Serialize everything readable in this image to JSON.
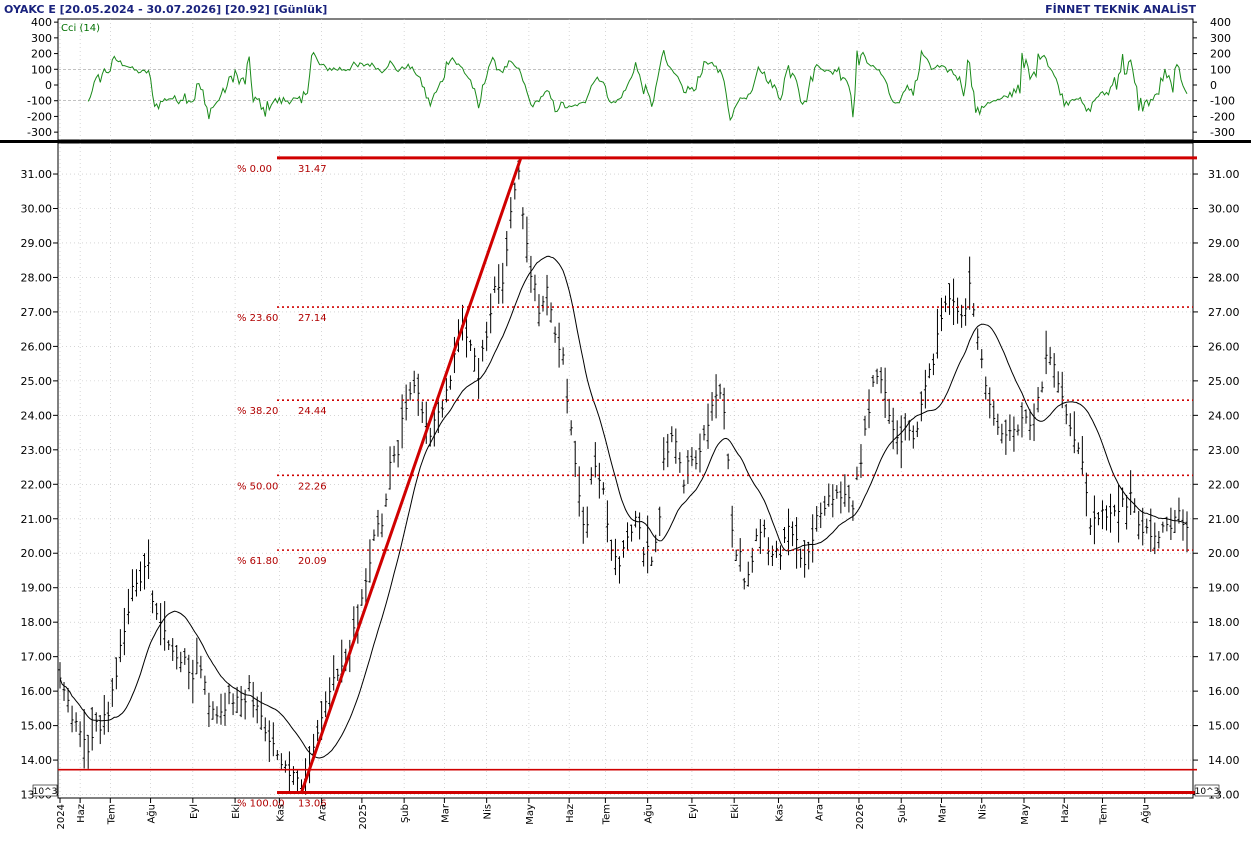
{
  "header": {
    "left": "OYAKC E  [20.05.2024 - 30.07.2026]  [20.92]  [Günlük]",
    "right": "FİNNET TEKNİK ANALİST"
  },
  "indicator": {
    "label": "Cci (14)",
    "ticks": [
      "400",
      "300",
      "200",
      "100",
      "0",
      "-100",
      "-200",
      "-300"
    ],
    "tick_values": [
      400,
      300,
      200,
      100,
      0,
      -100,
      -200,
      -300
    ],
    "color": "#1a8a1a"
  },
  "price_axis": {
    "ticks": [
      "31.00",
      "30.00",
      "29.00",
      "28.00",
      "27.00",
      "26.00",
      "25.00",
      "24.00",
      "23.00",
      "22.00",
      "21.00",
      "20.00",
      "19.00",
      "18.00",
      "17.00",
      "16.00",
      "15.00",
      "14.00",
      "13.00"
    ],
    "tick_values": [
      31,
      30,
      29,
      28,
      27,
      26,
      25,
      24,
      23,
      22,
      21,
      20,
      19,
      18,
      17,
      16,
      15,
      14,
      13
    ],
    "scale_badge": "10^3"
  },
  "fibonacci": {
    "color": "#d00000",
    "levels": [
      {
        "pct": "% 0.00",
        "value": "31.47",
        "price": 31.47
      },
      {
        "pct": "% 23.60",
        "value": "27.14",
        "price": 27.14
      },
      {
        "pct": "% 38.20",
        "value": "24.44",
        "price": 24.44
      },
      {
        "pct": "% 50.00",
        "value": "22.26",
        "price": 22.26
      },
      {
        "pct": "% 61.80",
        "value": "20.09",
        "price": 20.09
      },
      {
        "pct": "% 100.00",
        "value": "13.06",
        "price": 13.06
      }
    ],
    "support_price": 13.72,
    "trend_from": {
      "index": 120,
      "price": 13.06
    },
    "trend_to": {
      "index": 229,
      "price": 31.47
    }
  },
  "x_axis": {
    "labels": [
      {
        "text": "2024",
        "index": 0
      },
      {
        "text": "Haz",
        "index": 10
      },
      {
        "text": "Tem",
        "index": 25
      },
      {
        "text": "Ağu",
        "index": 45
      },
      {
        "text": "Eyl",
        "index": 66
      },
      {
        "text": "Eki",
        "index": 87
      },
      {
        "text": "Kas",
        "index": 109
      },
      {
        "text": "Ara",
        "index": 130
      },
      {
        "text": "2025",
        "index": 150
      },
      {
        "text": "Şub",
        "index": 171
      },
      {
        "text": "Mar",
        "index": 191
      },
      {
        "text": "Nis",
        "index": 212
      },
      {
        "text": "May",
        "index": 233
      },
      {
        "text": "Haz",
        "index": 253
      },
      {
        "text": "Tem",
        "index": 271
      },
      {
        "text": "Ağu",
        "index": 292
      },
      {
        "text": "Eyl",
        "index": 314
      },
      {
        "text": "Eki",
        "index": 335
      },
      {
        "text": "Kas",
        "index": 357
      },
      {
        "text": "Ara",
        "index": 377
      },
      {
        "text": "2026",
        "index": 397
      },
      {
        "text": "Şub",
        "index": 418
      },
      {
        "text": "Mar",
        "index": 438
      },
      {
        "text": "Nis",
        "index": 458
      },
      {
        "text": "May",
        "index": 479
      },
      {
        "text": "Haz",
        "index": 499
      },
      {
        "text": "Tem",
        "index": 518
      },
      {
        "text": "Ağu",
        "index": 539
      }
    ]
  },
  "chart_data": {
    "type": "line",
    "title": "OYAKC E  [20.05.2024 - 30.07.2026]  [20.92]  [Günlük]",
    "ylim": [
      12.9,
      31.9
    ],
    "indicator_ylim": [
      -350,
      420
    ],
    "bars_per_point": 2,
    "anchors": [
      [
        0,
        16.3
      ],
      [
        3,
        15.8
      ],
      [
        10,
        14.7
      ],
      [
        14,
        14.2
      ],
      [
        16,
        14.8
      ],
      [
        19,
        15.0
      ],
      [
        22,
        15.2
      ],
      [
        25,
        15.5
      ],
      [
        29,
        16.8
      ],
      [
        32,
        17.9
      ],
      [
        36,
        18.8
      ],
      [
        40,
        19.2
      ],
      [
        44,
        19.7
      ],
      [
        46,
        18.5
      ],
      [
        50,
        17.9
      ],
      [
        54,
        17.4
      ],
      [
        58,
        17.0
      ],
      [
        62,
        16.9
      ],
      [
        66,
        16.4
      ],
      [
        69,
        16.8
      ],
      [
        74,
        15.8
      ],
      [
        78,
        15.2
      ],
      [
        82,
        15.6
      ],
      [
        86,
        15.9
      ],
      [
        90,
        15.6
      ],
      [
        94,
        16.0
      ],
      [
        97,
        15.6
      ],
      [
        102,
        15.0
      ],
      [
        106,
        14.5
      ],
      [
        110,
        14.0
      ],
      [
        114,
        13.8
      ],
      [
        117,
        13.4
      ],
      [
        120,
        13.2
      ],
      [
        124,
        13.9
      ],
      [
        128,
        14.7
      ],
      [
        132,
        15.6
      ],
      [
        136,
        16.3
      ],
      [
        140,
        16.8
      ],
      [
        144,
        17.3
      ],
      [
        148,
        17.9
      ],
      [
        152,
        19.2
      ],
      [
        156,
        20.6
      ],
      [
        160,
        21.0
      ],
      [
        164,
        22.5
      ],
      [
        168,
        23.0
      ],
      [
        172,
        24.4
      ],
      [
        176,
        25.0
      ],
      [
        180,
        24.2
      ],
      [
        184,
        23.5
      ],
      [
        188,
        24.0
      ],
      [
        192,
        24.6
      ],
      [
        196,
        25.8
      ],
      [
        200,
        26.6
      ],
      [
        204,
        26.0
      ],
      [
        208,
        25.0
      ],
      [
        212,
        26.5
      ],
      [
        216,
        27.5
      ],
      [
        220,
        28.0
      ],
      [
        224,
        29.8
      ],
      [
        228,
        31.0
      ],
      [
        231,
        29.4
      ],
      [
        234,
        28.0
      ],
      [
        238,
        27.2
      ],
      [
        242,
        27.6
      ],
      [
        246,
        26.5
      ],
      [
        250,
        25.6
      ],
      [
        252,
        24.5
      ],
      [
        255,
        23.0
      ],
      [
        258,
        21.5
      ],
      [
        261,
        20.3
      ],
      [
        264,
        22.4
      ],
      [
        267,
        22.6
      ],
      [
        270,
        21.8
      ],
      [
        274,
        20.2
      ],
      [
        278,
        19.6
      ],
      [
        282,
        20.4
      ],
      [
        286,
        21.0
      ],
      [
        290,
        20.2
      ],
      [
        294,
        19.9
      ],
      [
        297,
        20.4
      ],
      [
        300,
        22.5
      ],
      [
        304,
        23.4
      ],
      [
        307,
        23.0
      ],
      [
        310,
        22.2
      ],
      [
        314,
        22.8
      ],
      [
        318,
        22.8
      ],
      [
        322,
        23.6
      ],
      [
        326,
        24.5
      ],
      [
        329,
        24.5
      ],
      [
        331,
        23.5
      ],
      [
        333,
        21.5
      ],
      [
        335,
        20.3
      ],
      [
        338,
        19.8
      ],
      [
        341,
        18.9
      ],
      [
        344,
        19.7
      ],
      [
        347,
        20.7
      ],
      [
        350,
        20.6
      ],
      [
        354,
        20.0
      ],
      [
        358,
        20.1
      ],
      [
        362,
        20.7
      ],
      [
        366,
        20.6
      ],
      [
        370,
        19.5
      ],
      [
        374,
        20.6
      ],
      [
        378,
        21.4
      ],
      [
        382,
        21.5
      ],
      [
        386,
        21.9
      ],
      [
        390,
        21.8
      ],
      [
        394,
        21.5
      ],
      [
        398,
        22.6
      ],
      [
        402,
        24.3
      ],
      [
        406,
        25.2
      ],
      [
        409,
        25.1
      ],
      [
        412,
        24.0
      ],
      [
        415,
        23.4
      ],
      [
        418,
        23.2
      ],
      [
        421,
        23.7
      ],
      [
        424,
        23.5
      ],
      [
        427,
        23.8
      ],
      [
        430,
        24.9
      ],
      [
        433,
        25.2
      ],
      [
        436,
        26.2
      ],
      [
        440,
        27.0
      ],
      [
        443,
        27.5
      ],
      [
        446,
        27.2
      ],
      [
        449,
        26.9
      ],
      [
        452,
        28.0
      ],
      [
        455,
        26.4
      ],
      [
        458,
        25.4
      ],
      [
        461,
        24.8
      ],
      [
        464,
        23.8
      ],
      [
        467,
        23.4
      ],
      [
        470,
        23.3
      ],
      [
        473,
        23.5
      ],
      [
        476,
        23.6
      ],
      [
        480,
        23.8
      ],
      [
        483,
        23.7
      ],
      [
        486,
        24.3
      ],
      [
        490,
        25.8
      ],
      [
        493,
        25.7
      ],
      [
        496,
        24.9
      ],
      [
        499,
        24.1
      ],
      [
        502,
        23.7
      ],
      [
        505,
        23.4
      ],
      [
        508,
        22.6
      ],
      [
        512,
        21.0
      ],
      [
        516,
        21.1
      ],
      [
        520,
        21.0
      ],
      [
        524,
        21.2
      ],
      [
        528,
        21.4
      ],
      [
        532,
        21.6
      ],
      [
        536,
        21.0
      ],
      [
        540,
        20.6
      ],
      [
        544,
        20.3
      ],
      [
        548,
        20.9
      ],
      [
        552,
        20.6
      ],
      [
        556,
        21.1
      ],
      [
        560,
        20.9
      ]
    ],
    "n_bars": 561,
    "ma_period": 14,
    "note_series": [
      {
        "name": "Cci (14)"
      }
    ]
  }
}
